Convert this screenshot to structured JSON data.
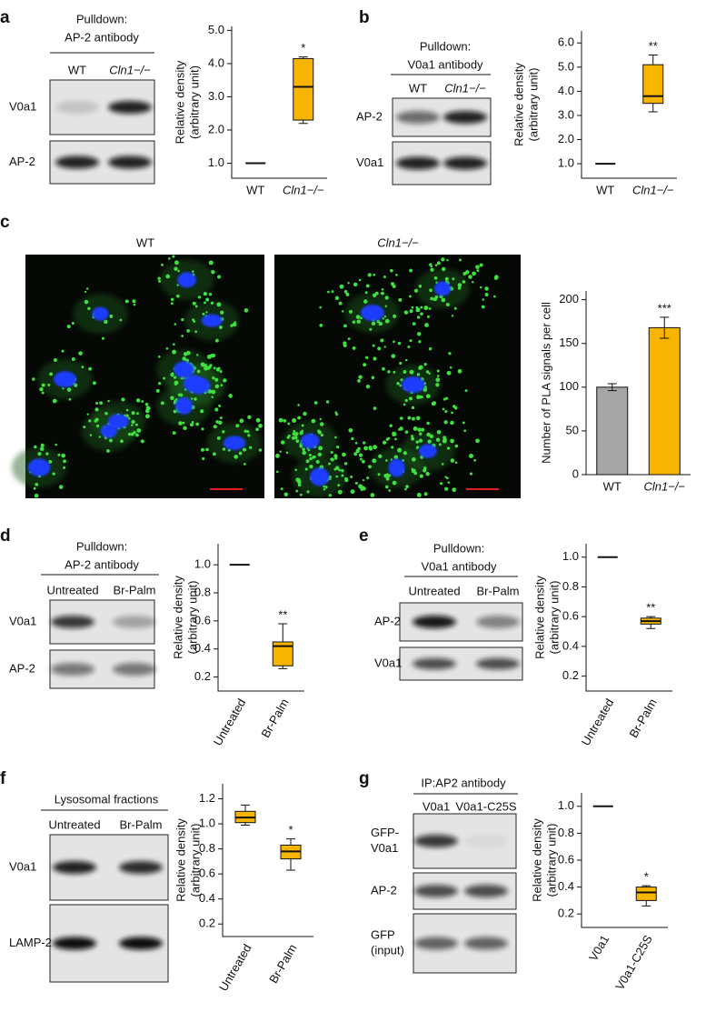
{
  "panels": [
    {
      "letter": "a",
      "header": [
        "Pulldown:",
        "AP-2 antibody"
      ],
      "lanes": [
        "WT",
        "Cln1−/−"
      ],
      "rows": [
        [
          "V0a1"
        ],
        [
          "AP-2"
        ]
      ]
    },
    {
      "letter": "b",
      "header": [
        "Pulldown:",
        "V0a1 antibody"
      ],
      "lanes": [
        "WT",
        "Cln1−/−"
      ],
      "rows": [
        [
          "AP-2"
        ],
        [
          "V0a1"
        ]
      ]
    },
    {
      "letter": "c",
      "image_titles": [
        "WT",
        "Cln1−/−"
      ]
    },
    {
      "letter": "d",
      "header": [
        "Pulldown:",
        "AP-2 antibody"
      ],
      "lanes": [
        "Untreated",
        "Br-Palm"
      ],
      "rows": [
        [
          "V0a1"
        ],
        [
          "AP-2"
        ]
      ]
    },
    {
      "letter": "e",
      "header": [
        "Pulldown:",
        "V0a1 antibody"
      ],
      "lanes": [
        "Untreated",
        "Br-Palm"
      ],
      "rows": [
        [
          "AP-2"
        ],
        [
          "V0a1"
        ]
      ]
    },
    {
      "letter": "f",
      "header": [
        "Lysosomal fractions"
      ],
      "lanes": [
        "Untreated",
        "Br-Palm"
      ],
      "rows": [
        [
          "V0a1"
        ],
        [
          "LAMP-2"
        ]
      ]
    },
    {
      "letter": "g",
      "header": [
        "IP:AP2 antibody"
      ],
      "lanes": [
        "V0a1",
        "V0a1-C25S"
      ],
      "rows": [
        [
          "GFP-",
          "V0a1"
        ],
        [
          "AP-2"
        ],
        [
          "GFP",
          "(input)"
        ]
      ]
    }
  ],
  "chart_data": [
    {
      "type": "box",
      "ylabel": [
        "Relative density",
        "(arbitrary unit)"
      ],
      "categories": [
        "WT",
        "Cln1−/−"
      ],
      "boxes": [
        {
          "min": 1,
          "q1": 1,
          "median": 1,
          "q3": 1,
          "max": 1
        },
        {
          "min": 2.2,
          "q1": 2.3,
          "median": 3.3,
          "q3": 4.15,
          "max": 4.2
        }
      ],
      "color": "#f7b500",
      "ylim": [
        0.55,
        5.12
      ],
      "yticks": [
        {
          "value": 1,
          "label": "1.0"
        },
        {
          "value": 2,
          "label": "2.0"
        },
        {
          "value": 3,
          "label": "3.0"
        },
        {
          "value": 4,
          "label": "4.0"
        },
        {
          "value": 5,
          "label": "5.0"
        }
      ],
      "annotation": "*"
    },
    {
      "type": "box",
      "ylabel": [
        "Relative density",
        "(arbitrary unit)"
      ],
      "categories": [
        "WT",
        "Cln1−/−"
      ],
      "boxes": [
        {
          "min": 1,
          "q1": 1,
          "median": 1,
          "q3": 1,
          "max": 1
        },
        {
          "min": 3.15,
          "q1": 3.5,
          "median": 3.8,
          "q3": 5.1,
          "max": 5.5
        }
      ],
      "color": "#f7b500",
      "ylim": [
        0.4,
        6.5
      ],
      "yticks": [
        {
          "value": 1,
          "label": "1.0"
        },
        {
          "value": 2,
          "label": "2.0"
        },
        {
          "value": 3,
          "label": "3.0"
        },
        {
          "value": 4,
          "label": "4.0"
        },
        {
          "value": 5,
          "label": "5.0"
        },
        {
          "value": 6,
          "label": "6.0"
        }
      ],
      "annotation": "**"
    },
    {
      "type": "bar",
      "ylabel": [
        "Number of PLA signals per cell"
      ],
      "categories": [
        "WT",
        "Cln1−/−"
      ],
      "values": [
        100,
        168
      ],
      "errors": [
        4,
        12
      ],
      "colors": [
        "#a6a6a6",
        "#f7b500"
      ],
      "ylim": [
        0,
        210
      ],
      "yticks": [
        0,
        50,
        100,
        150,
        200
      ],
      "annotation": "***"
    },
    {
      "type": "box",
      "ylabel": [
        "Relative density",
        "(arbitrary unit)"
      ],
      "categories": [
        "Untreated",
        "Br-Palm"
      ],
      "boxes": [
        {
          "min": 1,
          "q1": 1,
          "median": 1,
          "q3": 1,
          "max": 1
        },
        {
          "min": 0.26,
          "q1": 0.28,
          "median": 0.42,
          "q3": 0.45,
          "max": 0.58
        }
      ],
      "color": "#f7b500",
      "ylim": [
        0.1,
        1.15
      ],
      "yticks": [
        {
          "value": 0.2,
          "label": "0.2"
        },
        {
          "value": 0.4,
          "label": "0.4"
        },
        {
          "value": 0.6,
          "label": "0.6"
        },
        {
          "value": 0.8,
          "label": "0.8"
        },
        {
          "value": 1,
          "label": "1.0"
        }
      ],
      "annotation": "**"
    },
    {
      "type": "box",
      "ylabel": [
        "Relative density",
        "(arbitrary unit)"
      ],
      "categories": [
        "Untreated",
        "Br-Palm"
      ],
      "boxes": [
        {
          "min": 1,
          "q1": 1,
          "median": 1,
          "q3": 1,
          "max": 1
        },
        {
          "min": 0.52,
          "q1": 0.55,
          "median": 0.57,
          "q3": 0.59,
          "max": 0.6
        }
      ],
      "color": "#f7b500",
      "ylim": [
        0.1,
        1.09
      ],
      "yticks": [
        {
          "value": 0.2,
          "label": "0.2"
        },
        {
          "value": 0.4,
          "label": "0.4"
        },
        {
          "value": 0.6,
          "label": "0.6"
        },
        {
          "value": 0.8,
          "label": "0.8"
        },
        {
          "value": 1,
          "label": "1.0"
        }
      ],
      "annotation": "**"
    },
    {
      "type": "box",
      "ylabel": [
        "Relative density",
        "(arbitrary unit)"
      ],
      "categories": [
        "Untreated",
        "Br-Palm"
      ],
      "boxes": [
        {
          "min": 0.99,
          "q1": 1.01,
          "median": 1.05,
          "q3": 1.1,
          "max": 1.15
        },
        {
          "min": 0.63,
          "q1": 0.72,
          "median": 0.78,
          "q3": 0.83,
          "max": 0.88
        }
      ],
      "color": "#f7b500",
      "ylim": [
        0.1,
        1.32
      ],
      "yticks": [
        {
          "value": 0.2,
          "label": "0.2"
        },
        {
          "value": 0.4,
          "label": "0.4"
        },
        {
          "value": 0.6,
          "label": "0.6"
        },
        {
          "value": 0.8,
          "label": "0.8"
        },
        {
          "value": 1,
          "label": "1.0"
        },
        {
          "value": 1.2,
          "label": "1.2"
        }
      ],
      "annotation": "*"
    },
    {
      "type": "box",
      "ylabel": [
        "Relative density",
        "(arbitrary unit)"
      ],
      "categories": [
        "V0a1",
        "V0a1-C25S"
      ],
      "boxes": [
        {
          "min": 1,
          "q1": 1,
          "median": 1,
          "q3": 1,
          "max": 1
        },
        {
          "min": 0.26,
          "q1": 0.3,
          "median": 0.36,
          "q3": 0.4,
          "max": 0.41
        }
      ],
      "color": "#f7b500",
      "ylim": [
        0.1,
        1.1
      ],
      "yticks": [
        {
          "value": 0.2,
          "label": "0.2"
        },
        {
          "value": 0.4,
          "label": "0.4"
        },
        {
          "value": 0.6,
          "label": "0.6"
        },
        {
          "value": 0.8,
          "label": "0.8"
        },
        {
          "value": 1,
          "label": "1.0"
        }
      ],
      "annotation": "*"
    }
  ]
}
